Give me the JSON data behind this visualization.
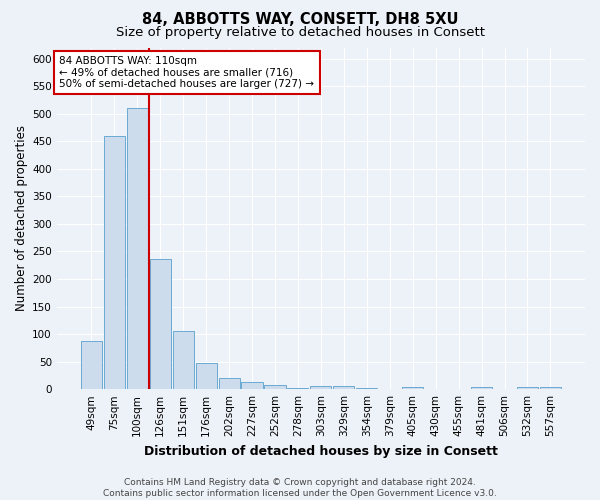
{
  "title": "84, ABBOTTS WAY, CONSETT, DH8 5XU",
  "subtitle": "Size of property relative to detached houses in Consett",
  "xlabel": "Distribution of detached houses by size in Consett",
  "ylabel": "Number of detached properties",
  "categories": [
    "49sqm",
    "75sqm",
    "100sqm",
    "126sqm",
    "151sqm",
    "176sqm",
    "202sqm",
    "227sqm",
    "252sqm",
    "278sqm",
    "303sqm",
    "329sqm",
    "354sqm",
    "379sqm",
    "405sqm",
    "430sqm",
    "455sqm",
    "481sqm",
    "506sqm",
    "532sqm",
    "557sqm"
  ],
  "values": [
    88,
    460,
    510,
    237,
    105,
    47,
    20,
    13,
    8,
    2,
    5,
    5,
    2,
    0,
    4,
    0,
    0,
    4,
    0,
    4,
    4
  ],
  "bar_color": "#ccdcec",
  "bar_edge_color": "#6aaad4",
  "red_line_index": 2.5,
  "annotation_text": "84 ABBOTTS WAY: 110sqm\n← 49% of detached houses are smaller (716)\n50% of semi-detached houses are larger (727) →",
  "annotation_box_facecolor": "#ffffff",
  "annotation_box_edgecolor": "#cc0000",
  "footer_text": "Contains HM Land Registry data © Crown copyright and database right 2024.\nContains public sector information licensed under the Open Government Licence v3.0.",
  "ylim": [
    0,
    620
  ],
  "yticks": [
    0,
    50,
    100,
    150,
    200,
    250,
    300,
    350,
    400,
    450,
    500,
    550,
    600
  ],
  "bg_color": "#edf2f8",
  "grid_color": "#ffffff",
  "title_fontsize": 10.5,
  "subtitle_fontsize": 9.5,
  "xlabel_fontsize": 9,
  "ylabel_fontsize": 8.5,
  "tick_fontsize": 7.5,
  "footer_fontsize": 6.5,
  "annot_fontsize": 7.5
}
